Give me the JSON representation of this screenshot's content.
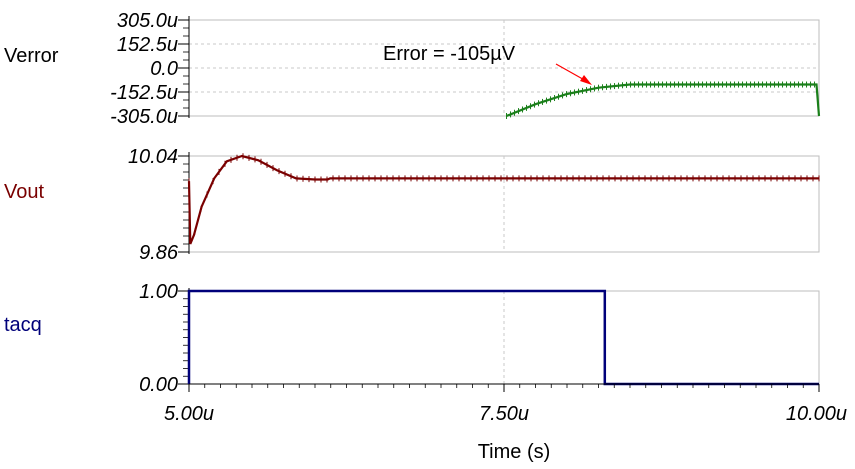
{
  "chart_data": [
    {
      "type": "line",
      "channel_label": "Verror",
      "y_ticks": [
        "305.0u",
        "152.5u",
        "0.0",
        "-152.5u",
        "-305.0u"
      ],
      "ylim": [
        -305.0,
        305.0
      ],
      "y_unit_scale": "u",
      "series": [
        {
          "color": "#1a7f1a",
          "x": [
            7.52,
            7.75,
            8.0,
            8.25,
            8.5,
            8.75,
            9.0,
            9.25,
            9.5,
            9.75,
            9.98,
            10.0
          ],
          "y": [
            -305,
            -230,
            -165,
            -125,
            -105,
            -105,
            -105,
            -105,
            -105,
            -105,
            -105,
            -305
          ]
        }
      ],
      "annotation": {
        "text": "Error = -105µV",
        "x": 8.3,
        "y": -105,
        "arrow_color": "#ff0000"
      }
    },
    {
      "type": "line",
      "channel_label": "Vout",
      "channel_color": "#7a0000",
      "y_ticks": [
        "10.04",
        "9.86"
      ],
      "ylim": [
        9.86,
        10.04
      ],
      "series": [
        {
          "color": "#7a0000",
          "x": [
            5.0,
            5.01,
            5.04,
            5.1,
            5.2,
            5.3,
            5.42,
            5.55,
            5.7,
            5.85,
            6.0,
            6.1,
            6.12,
            6.3,
            7.0,
            8.0,
            9.0,
            10.0
          ],
          "y": [
            9.993,
            9.875,
            9.892,
            9.945,
            9.998,
            10.03,
            10.04,
            10.032,
            10.013,
            9.998,
            9.996,
            9.996,
            9.998,
            9.998,
            9.998,
            9.998,
            9.998,
            9.998
          ]
        }
      ]
    },
    {
      "type": "line",
      "channel_label": "tacq",
      "channel_color": "#00007a",
      "y_ticks": [
        "1.00",
        "0.00"
      ],
      "ylim": [
        0.0,
        1.0
      ],
      "series": [
        {
          "color": "#00007a",
          "x": [
            5.0,
            5.0,
            8.3,
            8.3,
            10.0
          ],
          "y": [
            0.0,
            1.0,
            1.0,
            0.0,
            0.0
          ]
        }
      ]
    }
  ],
  "x_axis": {
    "label": "Time (s)",
    "ticks": [
      "5.00u",
      "7.50u",
      "10.00u"
    ],
    "tick_values": [
      5.0,
      7.5,
      10.0
    ],
    "xlim": [
      5.0,
      10.0
    ]
  },
  "colors": {
    "grid": "#c8c8c8",
    "frame": "#bdbdbd",
    "axis": "#000000"
  }
}
